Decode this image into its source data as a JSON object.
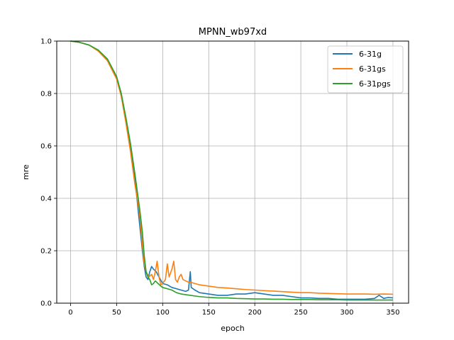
{
  "chart_data": {
    "type": "line",
    "title": "MPNN_wb97xd",
    "xlabel": "epoch",
    "ylabel": "mre",
    "xlim": [
      -15,
      367
    ],
    "ylim": [
      0,
      1.0
    ],
    "xticks": [
      0,
      50,
      100,
      150,
      200,
      250,
      300,
      350
    ],
    "yticks": [
      0.0,
      0.2,
      0.4,
      0.6,
      0.8,
      1.0
    ],
    "xtick_labels": [
      "0",
      "50",
      "100",
      "150",
      "200",
      "250",
      "300",
      "350"
    ],
    "ytick_labels": [
      "0.0",
      "0.2",
      "0.4",
      "0.6",
      "0.8",
      "1.0"
    ],
    "grid": true,
    "legend_position": "top-right",
    "series": [
      {
        "name": "6-31g",
        "color": "#1f77b4",
        "points": [
          [
            0,
            1.0
          ],
          [
            10,
            0.995
          ],
          [
            20,
            0.985
          ],
          [
            30,
            0.965
          ],
          [
            40,
            0.93
          ],
          [
            50,
            0.86
          ],
          [
            55,
            0.8
          ],
          [
            60,
            0.7
          ],
          [
            65,
            0.6
          ],
          [
            70,
            0.47
          ],
          [
            75,
            0.3
          ],
          [
            78,
            0.2
          ],
          [
            80,
            0.14
          ],
          [
            82,
            0.1
          ],
          [
            84,
            0.09
          ],
          [
            86,
            0.12
          ],
          [
            88,
            0.14
          ],
          [
            90,
            0.13
          ],
          [
            93,
            0.12
          ],
          [
            96,
            0.1
          ],
          [
            100,
            0.075
          ],
          [
            105,
            0.07
          ],
          [
            110,
            0.06
          ],
          [
            115,
            0.055
          ],
          [
            120,
            0.05
          ],
          [
            125,
            0.045
          ],
          [
            128,
            0.05
          ],
          [
            130,
            0.12
          ],
          [
            131,
            0.06
          ],
          [
            135,
            0.05
          ],
          [
            140,
            0.04
          ],
          [
            150,
            0.035
          ],
          [
            160,
            0.03
          ],
          [
            170,
            0.03
          ],
          [
            180,
            0.035
          ],
          [
            190,
            0.035
          ],
          [
            200,
            0.04
          ],
          [
            210,
            0.035
          ],
          [
            220,
            0.03
          ],
          [
            230,
            0.03
          ],
          [
            240,
            0.025
          ],
          [
            250,
            0.02
          ],
          [
            260,
            0.02
          ],
          [
            270,
            0.018
          ],
          [
            280,
            0.018
          ],
          [
            290,
            0.015
          ],
          [
            300,
            0.015
          ],
          [
            310,
            0.015
          ],
          [
            320,
            0.015
          ],
          [
            330,
            0.018
          ],
          [
            335,
            0.03
          ],
          [
            340,
            0.018
          ],
          [
            345,
            0.022
          ],
          [
            350,
            0.02
          ]
        ]
      },
      {
        "name": "6-31gs",
        "color": "#ff7f0e",
        "points": [
          [
            0,
            1.0
          ],
          [
            10,
            0.995
          ],
          [
            20,
            0.985
          ],
          [
            30,
            0.962
          ],
          [
            40,
            0.925
          ],
          [
            50,
            0.855
          ],
          [
            55,
            0.79
          ],
          [
            60,
            0.69
          ],
          [
            65,
            0.58
          ],
          [
            70,
            0.45
          ],
          [
            75,
            0.34
          ],
          [
            78,
            0.22
          ],
          [
            80,
            0.15
          ],
          [
            82,
            0.12
          ],
          [
            85,
            0.1
          ],
          [
            88,
            0.11
          ],
          [
            90,
            0.09
          ],
          [
            92,
            0.12
          ],
          [
            94,
            0.16
          ],
          [
            96,
            0.1
          ],
          [
            98,
            0.07
          ],
          [
            100,
            0.075
          ],
          [
            103,
            0.09
          ],
          [
            105,
            0.15
          ],
          [
            107,
            0.1
          ],
          [
            110,
            0.13
          ],
          [
            112,
            0.16
          ],
          [
            114,
            0.09
          ],
          [
            116,
            0.08
          ],
          [
            118,
            0.1
          ],
          [
            120,
            0.11
          ],
          [
            122,
            0.09
          ],
          [
            125,
            0.085
          ],
          [
            128,
            0.08
          ],
          [
            130,
            0.08
          ],
          [
            135,
            0.075
          ],
          [
            140,
            0.07
          ],
          [
            150,
            0.065
          ],
          [
            160,
            0.06
          ],
          [
            170,
            0.058
          ],
          [
            180,
            0.055
          ],
          [
            190,
            0.052
          ],
          [
            200,
            0.05
          ],
          [
            210,
            0.048
          ],
          [
            220,
            0.046
          ],
          [
            230,
            0.044
          ],
          [
            240,
            0.042
          ],
          [
            250,
            0.04
          ],
          [
            260,
            0.04
          ],
          [
            270,
            0.038
          ],
          [
            280,
            0.037
          ],
          [
            290,
            0.036
          ],
          [
            300,
            0.035
          ],
          [
            310,
            0.035
          ],
          [
            320,
            0.035
          ],
          [
            330,
            0.034
          ],
          [
            340,
            0.035
          ],
          [
            350,
            0.034
          ]
        ]
      },
      {
        "name": "6-31pgs",
        "color": "#2ca02c",
        "points": [
          [
            0,
            1.0
          ],
          [
            10,
            0.995
          ],
          [
            20,
            0.985
          ],
          [
            30,
            0.966
          ],
          [
            40,
            0.932
          ],
          [
            50,
            0.865
          ],
          [
            55,
            0.8
          ],
          [
            60,
            0.71
          ],
          [
            65,
            0.61
          ],
          [
            70,
            0.49
          ],
          [
            75,
            0.36
          ],
          [
            78,
            0.27
          ],
          [
            80,
            0.18
          ],
          [
            82,
            0.12
          ],
          [
            84,
            0.1
          ],
          [
            86,
            0.09
          ],
          [
            88,
            0.07
          ],
          [
            90,
            0.075
          ],
          [
            92,
            0.085
          ],
          [
            95,
            0.075
          ],
          [
            98,
            0.065
          ],
          [
            100,
            0.06
          ],
          [
            105,
            0.055
          ],
          [
            110,
            0.05
          ],
          [
            115,
            0.04
          ],
          [
            120,
            0.035
          ],
          [
            130,
            0.03
          ],
          [
            140,
            0.025
          ],
          [
            150,
            0.022
          ],
          [
            160,
            0.02
          ],
          [
            170,
            0.02
          ],
          [
            180,
            0.018
          ],
          [
            190,
            0.017
          ],
          [
            200,
            0.016
          ],
          [
            210,
            0.016
          ],
          [
            220,
            0.015
          ],
          [
            230,
            0.015
          ],
          [
            240,
            0.014
          ],
          [
            250,
            0.014
          ],
          [
            260,
            0.014
          ],
          [
            270,
            0.013
          ],
          [
            280,
            0.013
          ],
          [
            290,
            0.013
          ],
          [
            300,
            0.012
          ],
          [
            310,
            0.012
          ],
          [
            320,
            0.012
          ],
          [
            330,
            0.012
          ],
          [
            340,
            0.012
          ],
          [
            350,
            0.012
          ]
        ]
      }
    ]
  }
}
